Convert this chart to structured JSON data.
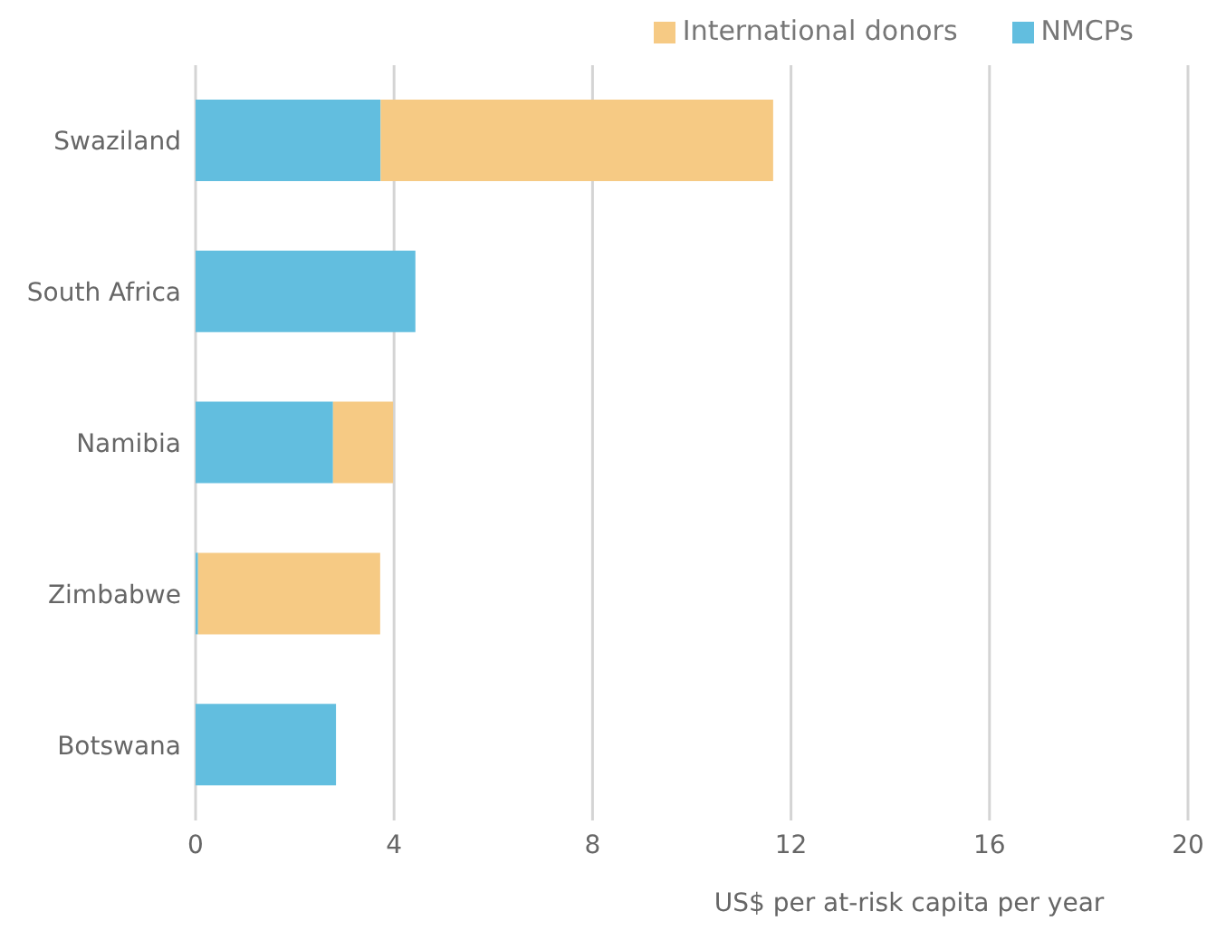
{
  "chart_data": {
    "type": "bar",
    "orientation": "horizontal",
    "stacked": true,
    "xlabel": "US$ per at-risk capita per year",
    "categories": [
      "Swaziland",
      "South Africa",
      "Namibia",
      "Zimbabwe",
      "Botswana"
    ],
    "series": [
      {
        "name": "NMCPs",
        "color": "#62bedf",
        "values": [
          3.73,
          4.43,
          2.77,
          0.05,
          2.83
        ]
      },
      {
        "name": "International donors",
        "color": "#f6ca84",
        "values": [
          7.91,
          0,
          1.21,
          3.67,
          0
        ]
      }
    ],
    "xlim": [
      0,
      20
    ],
    "xticks": [
      0,
      4,
      8,
      12,
      16,
      20
    ],
    "grid": "x",
    "legend": "top right"
  }
}
